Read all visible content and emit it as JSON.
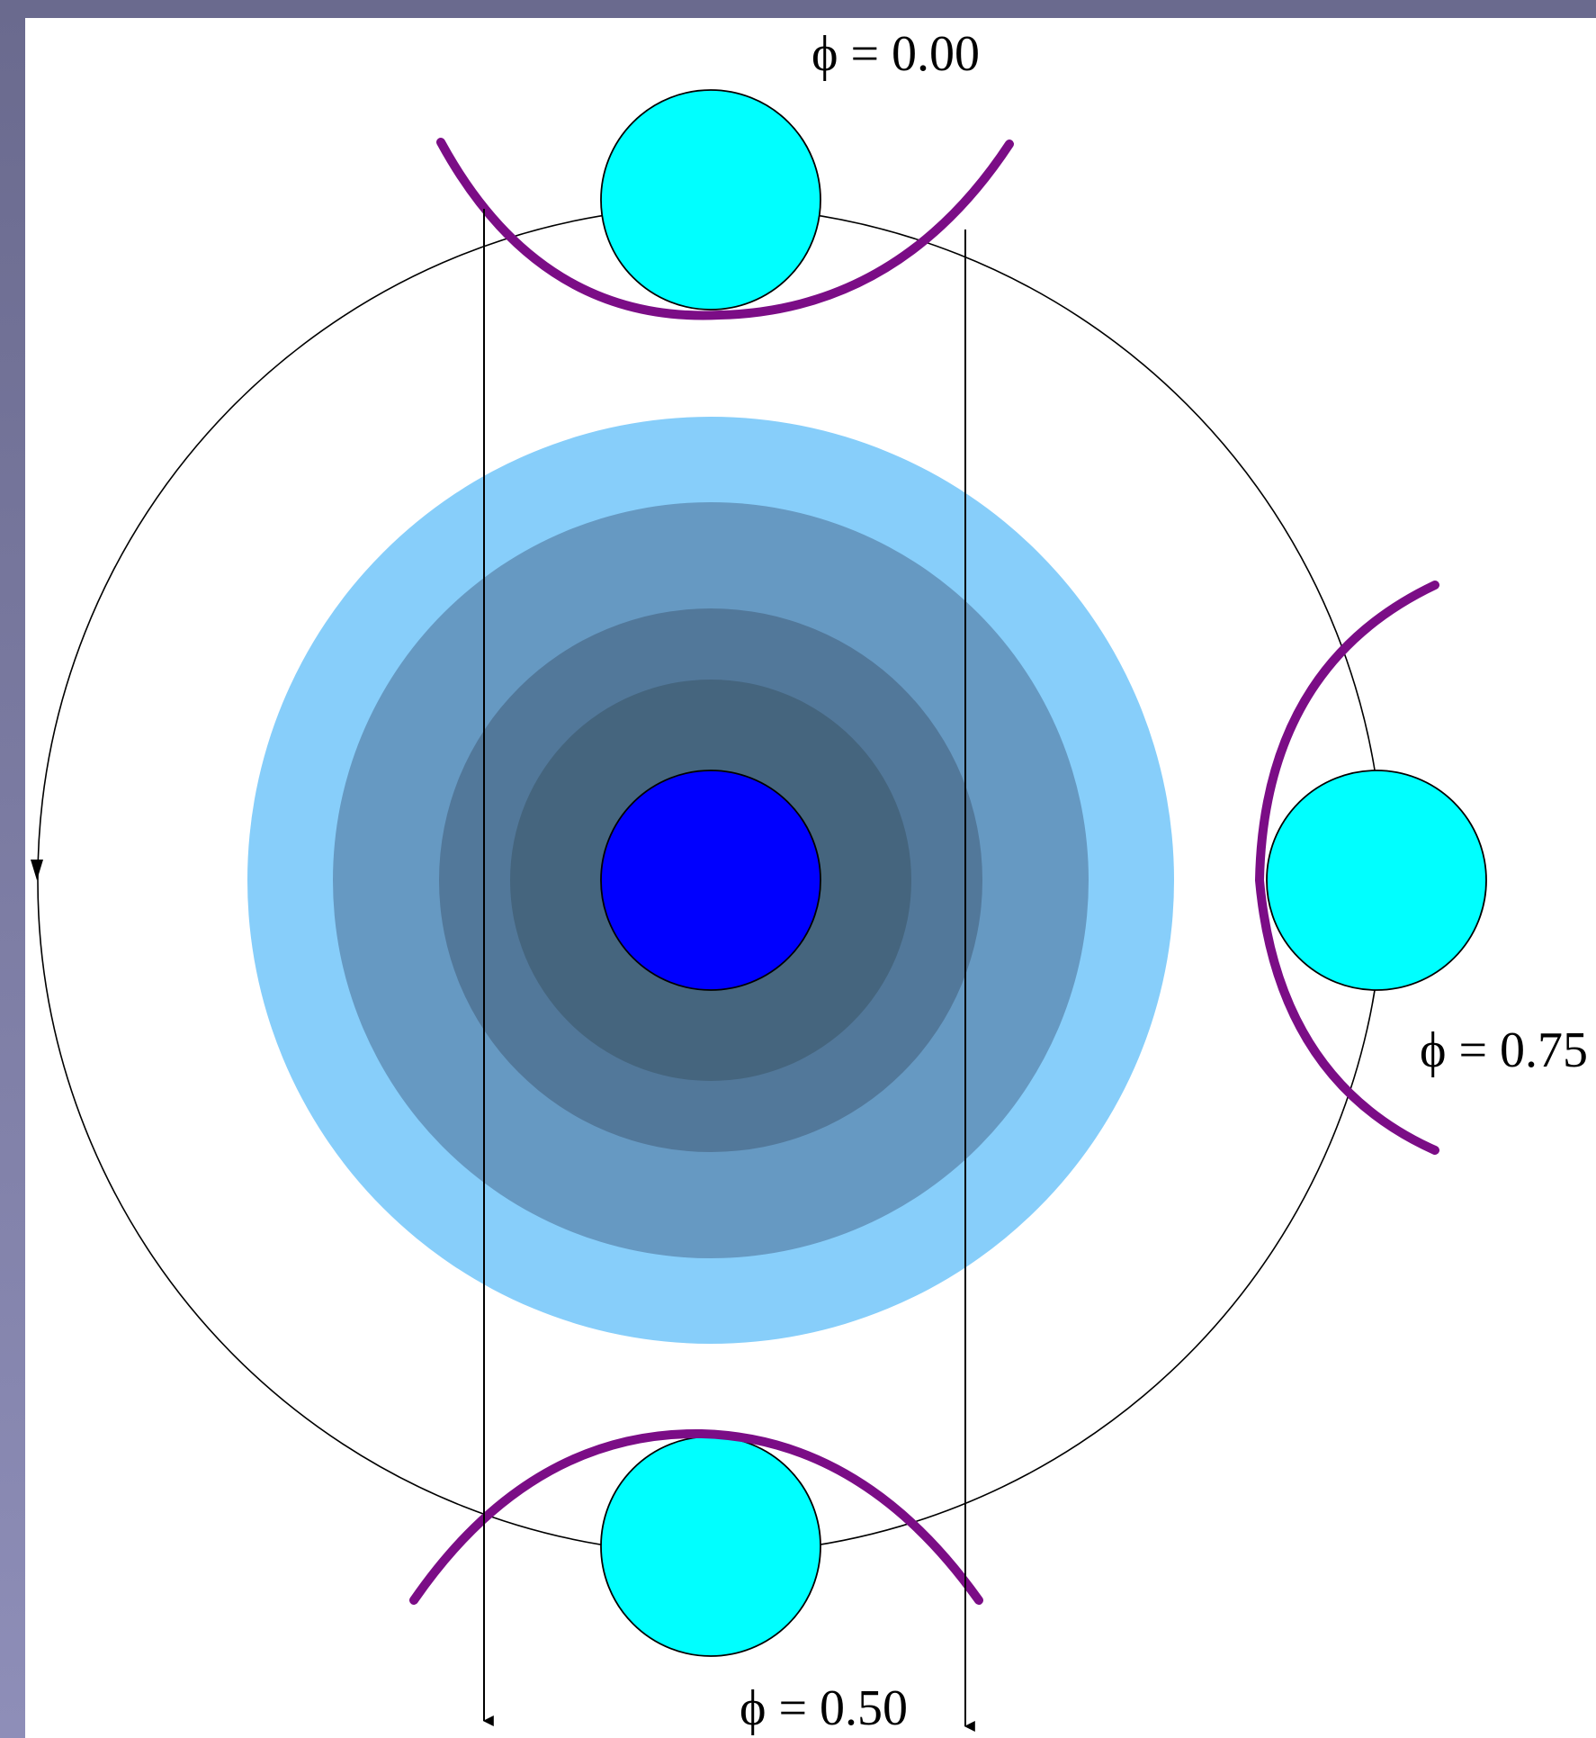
{
  "labels": {
    "phase_top": "ϕ = 0.00",
    "phase_right": "ϕ = 0.75",
    "phase_bottom": "ϕ = 0.50"
  },
  "colors": {
    "frame_background": "#72729a",
    "panel_background": "#ffffff",
    "disk_outer": "#87cefa",
    "disk_ring_2": "#6699c2",
    "disk_ring_3": "#52789a",
    "disk_ring_4": "#45657e",
    "central_star": "#0000ff",
    "companion_star": "#00ffff",
    "shock_arc": "#7b0d86",
    "orbit_line": "#000000"
  },
  "icons": {
    "orbit_direction": "arrowhead-down-icon",
    "sightline": "arrowhead-down-icon"
  }
}
